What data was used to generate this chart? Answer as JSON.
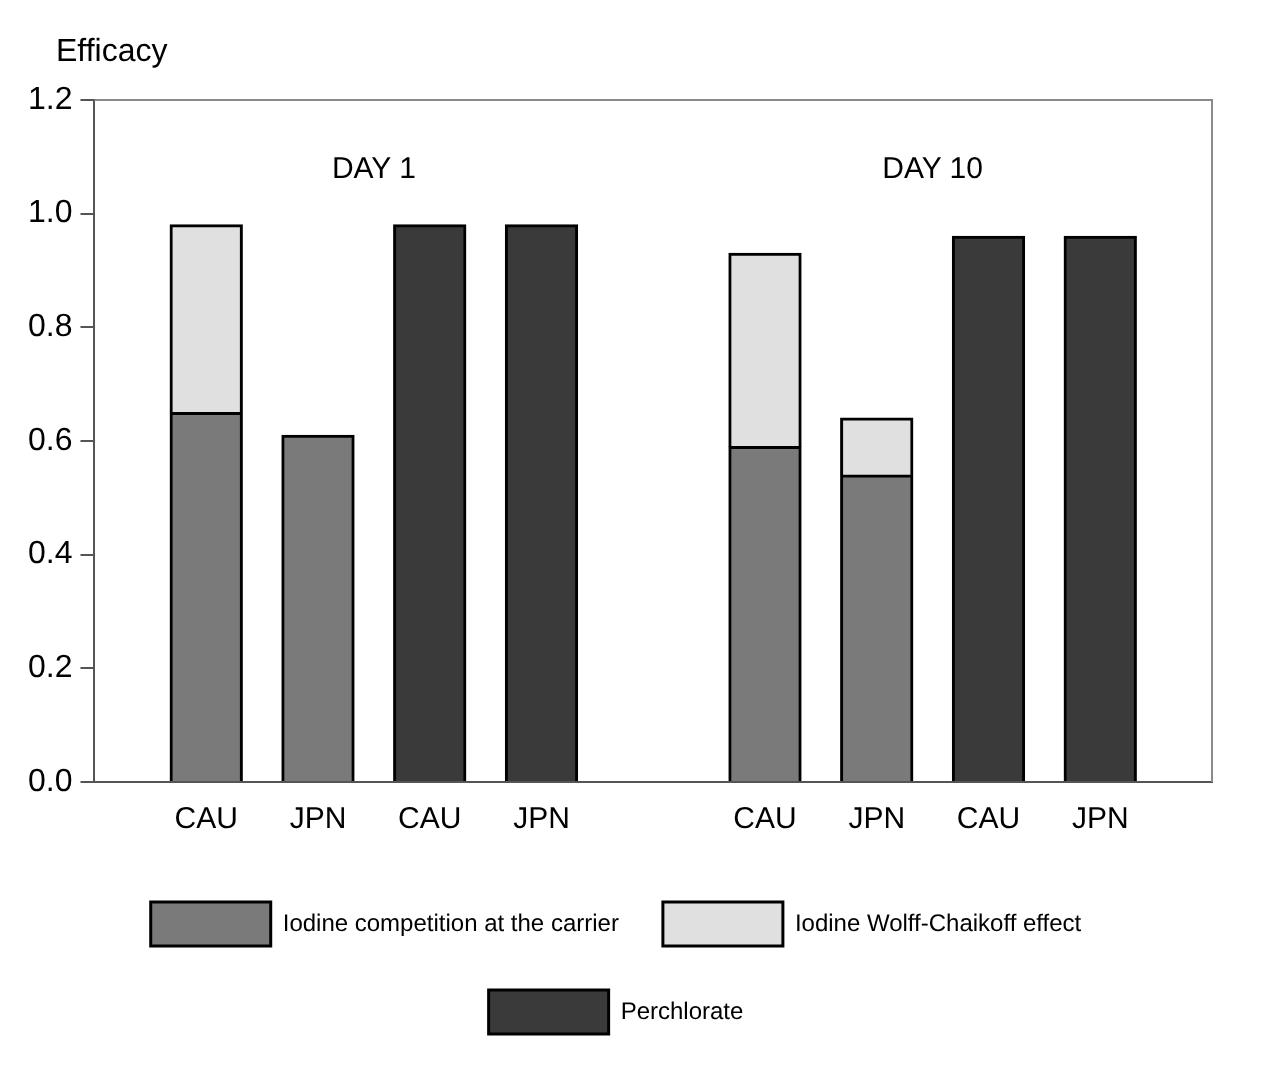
{
  "chart_data": {
    "type": "bar",
    "stacked": true,
    "ylabel": "Efficacy",
    "categories": [
      null,
      "CAU",
      "JPN",
      "CAU",
      "JPN",
      null,
      "CAU",
      "JPN",
      "CAU",
      "JPN",
      null
    ],
    "series": [
      {
        "name": "Iodine competition at the carrier",
        "color": "#7a7a7a",
        "values": [
          null,
          0.65,
          0.61,
          null,
          null,
          null,
          0.59,
          0.54,
          null,
          null,
          null
        ]
      },
      {
        "name": "Iodine Wolff-Chaikoff effect",
        "color": "#e0e0e0",
        "values": [
          null,
          0.33,
          null,
          null,
          null,
          null,
          0.34,
          0.1,
          null,
          null,
          null
        ]
      },
      {
        "name": "Perchlorate",
        "color": "#3a3a3a",
        "values": [
          null,
          null,
          null,
          0.98,
          0.98,
          null,
          null,
          null,
          0.96,
          0.96,
          null
        ]
      }
    ],
    "ylim": [
      0,
      1.2
    ],
    "yticks": [
      {
        "value": 0,
        "label": "0.0"
      },
      {
        "value": 0.2,
        "label": "0.2"
      },
      {
        "value": 0.4,
        "label": "0.4"
      },
      {
        "value": 0.6,
        "label": "0.6"
      },
      {
        "value": 0.8,
        "label": "0.8"
      },
      {
        "value": 1,
        "label": "1.0"
      },
      {
        "value": 1.2,
        "label": "1.2"
      }
    ],
    "annotations": [
      "DAY 1",
      "DAY 10"
    ],
    "grid": false,
    "legend": "bottom"
  }
}
